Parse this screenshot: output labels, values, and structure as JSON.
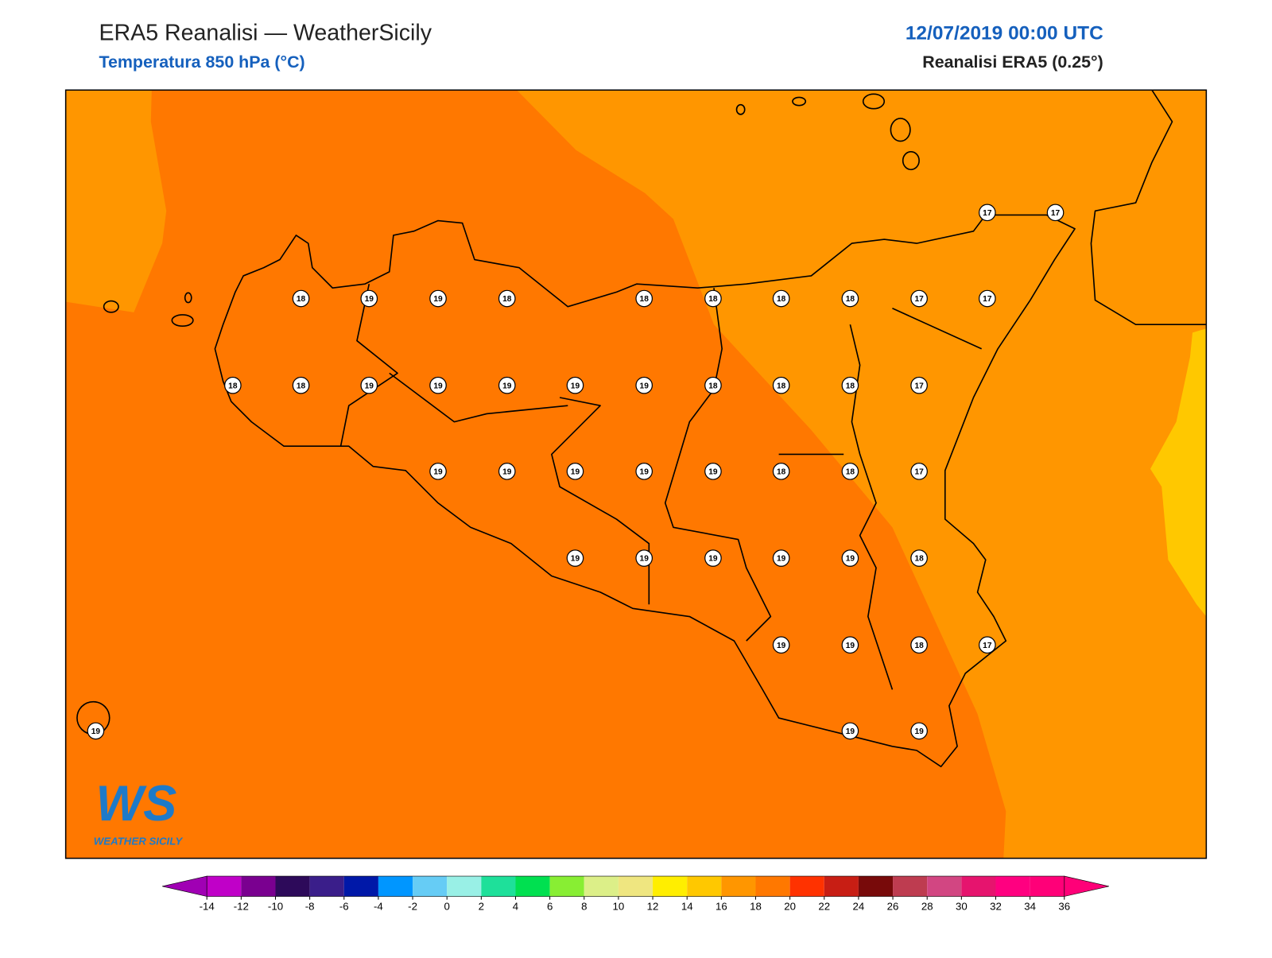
{
  "header": {
    "title": "ERA5 Reanalisi — WeatherSicily",
    "subtitle": "Temperatura 850 hPa (°C)",
    "datetime": "12/07/2019 00:00 UTC",
    "source": "Reanalisi ERA5 (0.25°)"
  },
  "stations": [
    17,
    17,
    18,
    19,
    19,
    18,
    18,
    18,
    18,
    18,
    17,
    17,
    18,
    18,
    19,
    19,
    19,
    19,
    19,
    18,
    18,
    18,
    17,
    19,
    19,
    19,
    19,
    19,
    18,
    18,
    17,
    19,
    19,
    19,
    19,
    19,
    18,
    19,
    19,
    18,
    17,
    19,
    19,
    19
  ],
  "colorbar": {
    "ticks": [
      -14,
      -12,
      -10,
      -8,
      -6,
      -4,
      -2,
      0,
      2,
      4,
      6,
      8,
      10,
      12,
      14,
      16,
      18,
      20,
      22,
      24,
      26,
      28,
      30,
      32,
      34,
      36
    ],
    "colors": [
      "#c000c8",
      "#7a0090",
      "#2d0a5a",
      "#3a1e8a",
      "#0018a8",
      "#0096ff",
      "#66ccf5",
      "#99f0e6",
      "#1ee09a",
      "#00e050",
      "#88ee33",
      "#dcef88",
      "#efe680",
      "#ffee00",
      "#ffc800",
      "#ff9600",
      "#ff7800",
      "#ff3200",
      "#c81e14",
      "#780a0a",
      "#be3c50",
      "#d24682",
      "#e6146e",
      "#ff0080",
      "#ff0078"
    ],
    "under_color": "#a000b4",
    "over_color": "#ff0078"
  },
  "logo": {
    "mark": "WS",
    "text": "WEATHER SICILY"
  }
}
